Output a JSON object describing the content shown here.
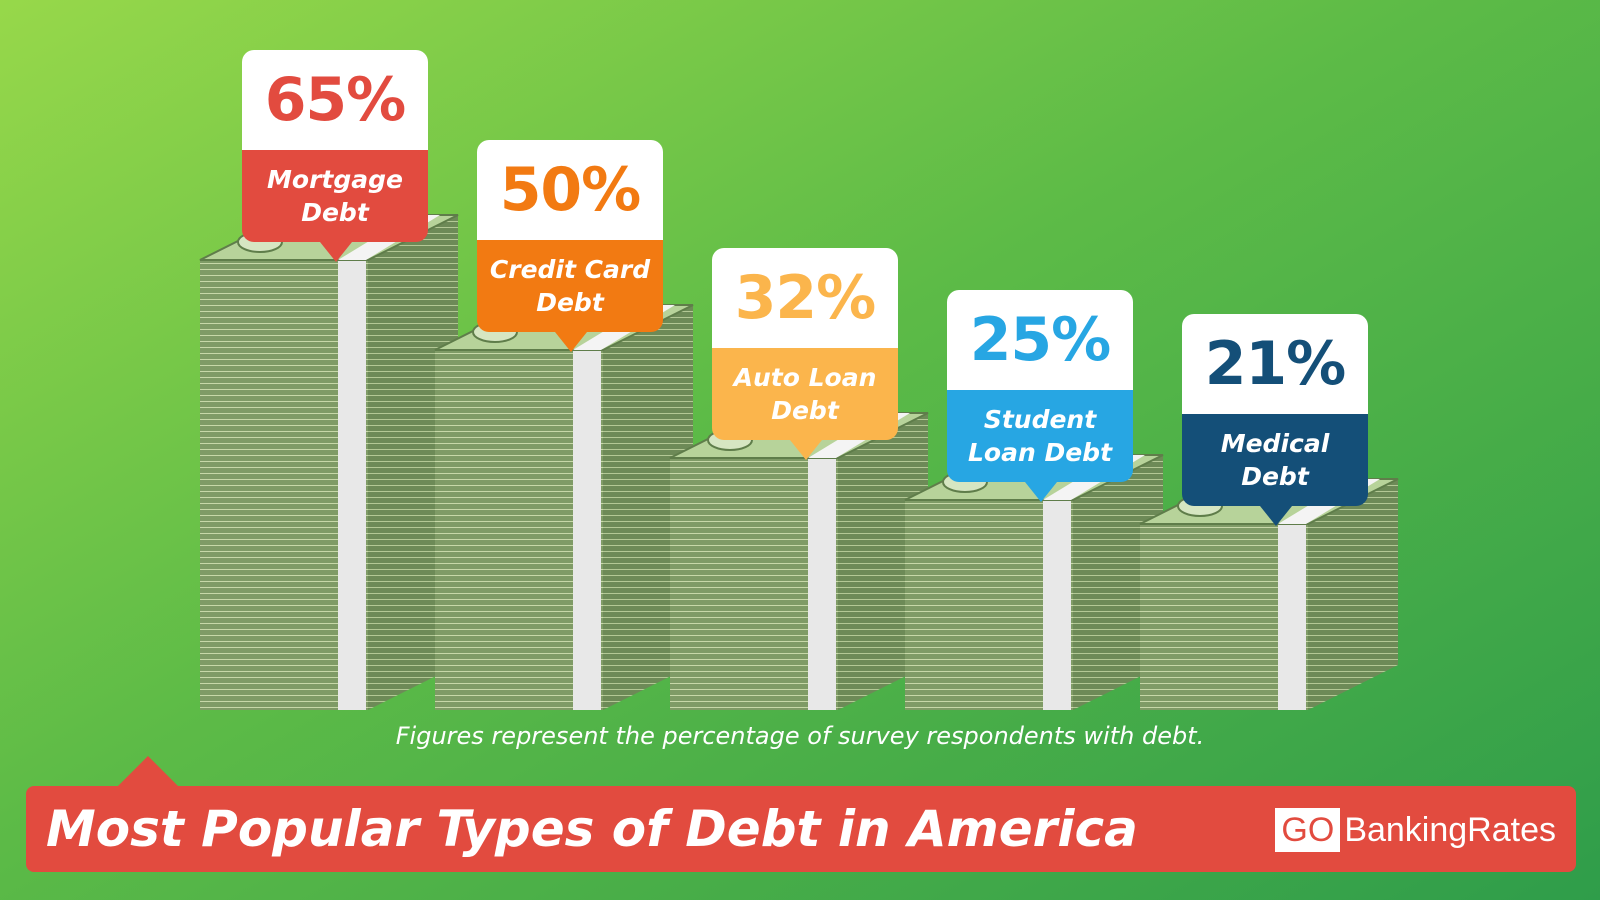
{
  "chart_data": {
    "type": "bar",
    "title": "Most Popular Types of Debt in America",
    "note": "Figures represent the percentage of survey respondents with debt.",
    "categories": [
      "Mortgage Debt",
      "Credit Card Debt",
      "Auto Loan Debt",
      "Student Loan Debt",
      "Medical Debt"
    ],
    "values": [
      65,
      50,
      32,
      25,
      21
    ],
    "value_labels": [
      "65%",
      "50%",
      "32%",
      "25%",
      "21%"
    ],
    "colors": [
      "#e24b3f",
      "#f27a12",
      "#fbb54c",
      "#27a6e3",
      "#144f78"
    ]
  },
  "logo": {
    "prefix": "GO",
    "name": "BankingRates"
  }
}
